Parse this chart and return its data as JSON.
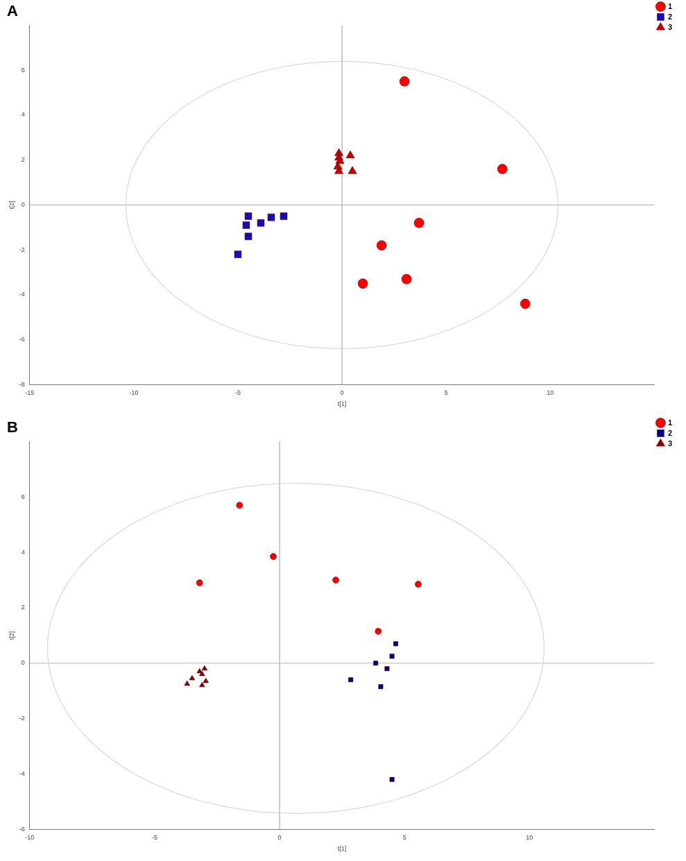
{
  "chart_data": [
    {
      "type": "scatter",
      "title": "A",
      "xlabel": "t[1]",
      "ylabel": "t[2]",
      "xlim": [
        -15,
        15
      ],
      "ylim": [
        -8,
        8
      ],
      "xticks": [
        -15,
        -10,
        -5,
        0,
        5,
        10
      ],
      "yticks": [
        -8,
        -6,
        -4,
        -2,
        0,
        2,
        4,
        6
      ],
      "grid": false,
      "ref_lines": [
        {
          "axis": "x",
          "value": 0,
          "color": "#9a9a9a"
        },
        {
          "axis": "y",
          "value": 0,
          "color": "#a8a8a8"
        }
      ],
      "legend": "top right",
      "series": [
        {
          "name": "1",
          "color": "#ff0000",
          "marker": "circle",
          "x": [
            3.0,
            7.7,
            3.7,
            1.9,
            1.0,
            3.1,
            8.8
          ],
          "values": [
            5.5,
            1.6,
            -0.8,
            -1.8,
            -3.5,
            -3.3,
            -4.4
          ]
        },
        {
          "name": "2",
          "color": "#1a0ab4",
          "marker": "square",
          "x": [
            -4.5,
            -4.6,
            -4.5,
            -3.9,
            -3.4,
            -2.8,
            -5.0
          ],
          "values": [
            -0.5,
            -0.9,
            -1.4,
            -0.8,
            -0.55,
            -0.5,
            -2.2
          ]
        },
        {
          "name": "3",
          "color": "#c00000",
          "marker": "triangle",
          "x": [
            -0.15,
            -0.15,
            -0.1,
            -0.2,
            -0.15,
            0.4,
            0.5
          ],
          "values": [
            2.3,
            2.1,
            1.95,
            1.7,
            1.5,
            2.2,
            1.5
          ]
        }
      ]
    },
    {
      "type": "scatter",
      "title": "B",
      "xlabel": "t[1]",
      "ylabel": "t[2]",
      "xlim": [
        -10,
        15
      ],
      "ylim": [
        -6,
        8
      ],
      "xticks": [
        -10,
        -5,
        0,
        5,
        10
      ],
      "yticks": [
        -6,
        -4,
        -2,
        0,
        2,
        4,
        6
      ],
      "grid": false,
      "ref_lines": [
        {
          "axis": "x",
          "value": 0,
          "color": "#9a9a9a"
        },
        {
          "axis": "y",
          "value": 0,
          "color": "#b4b4b4"
        }
      ],
      "legend": "top right",
      "series": [
        {
          "name": "1",
          "color": "#ff0000",
          "marker": "circle",
          "x": [
            -1.6,
            -0.25,
            -3.2,
            2.25,
            5.55,
            3.95
          ],
          "values": [
            5.7,
            3.85,
            2.9,
            3.0,
            2.85,
            1.15
          ]
        },
        {
          "name": "2",
          "color": "#000080",
          "marker": "square",
          "x": [
            4.65,
            4.5,
            3.85,
            4.3,
            2.85,
            4.05,
            4.5
          ],
          "values": [
            0.7,
            0.25,
            0.0,
            -0.2,
            -0.6,
            -0.85,
            -4.2
          ]
        },
        {
          "name": "3",
          "color": "#8b0000",
          "marker": "triangle",
          "x": [
            -3.0,
            -3.2,
            -3.1,
            -3.5,
            -2.95,
            -3.7,
            -3.1
          ],
          "values": [
            -0.2,
            -0.3,
            -0.4,
            -0.55,
            -0.65,
            -0.75,
            -0.8
          ]
        }
      ]
    }
  ]
}
